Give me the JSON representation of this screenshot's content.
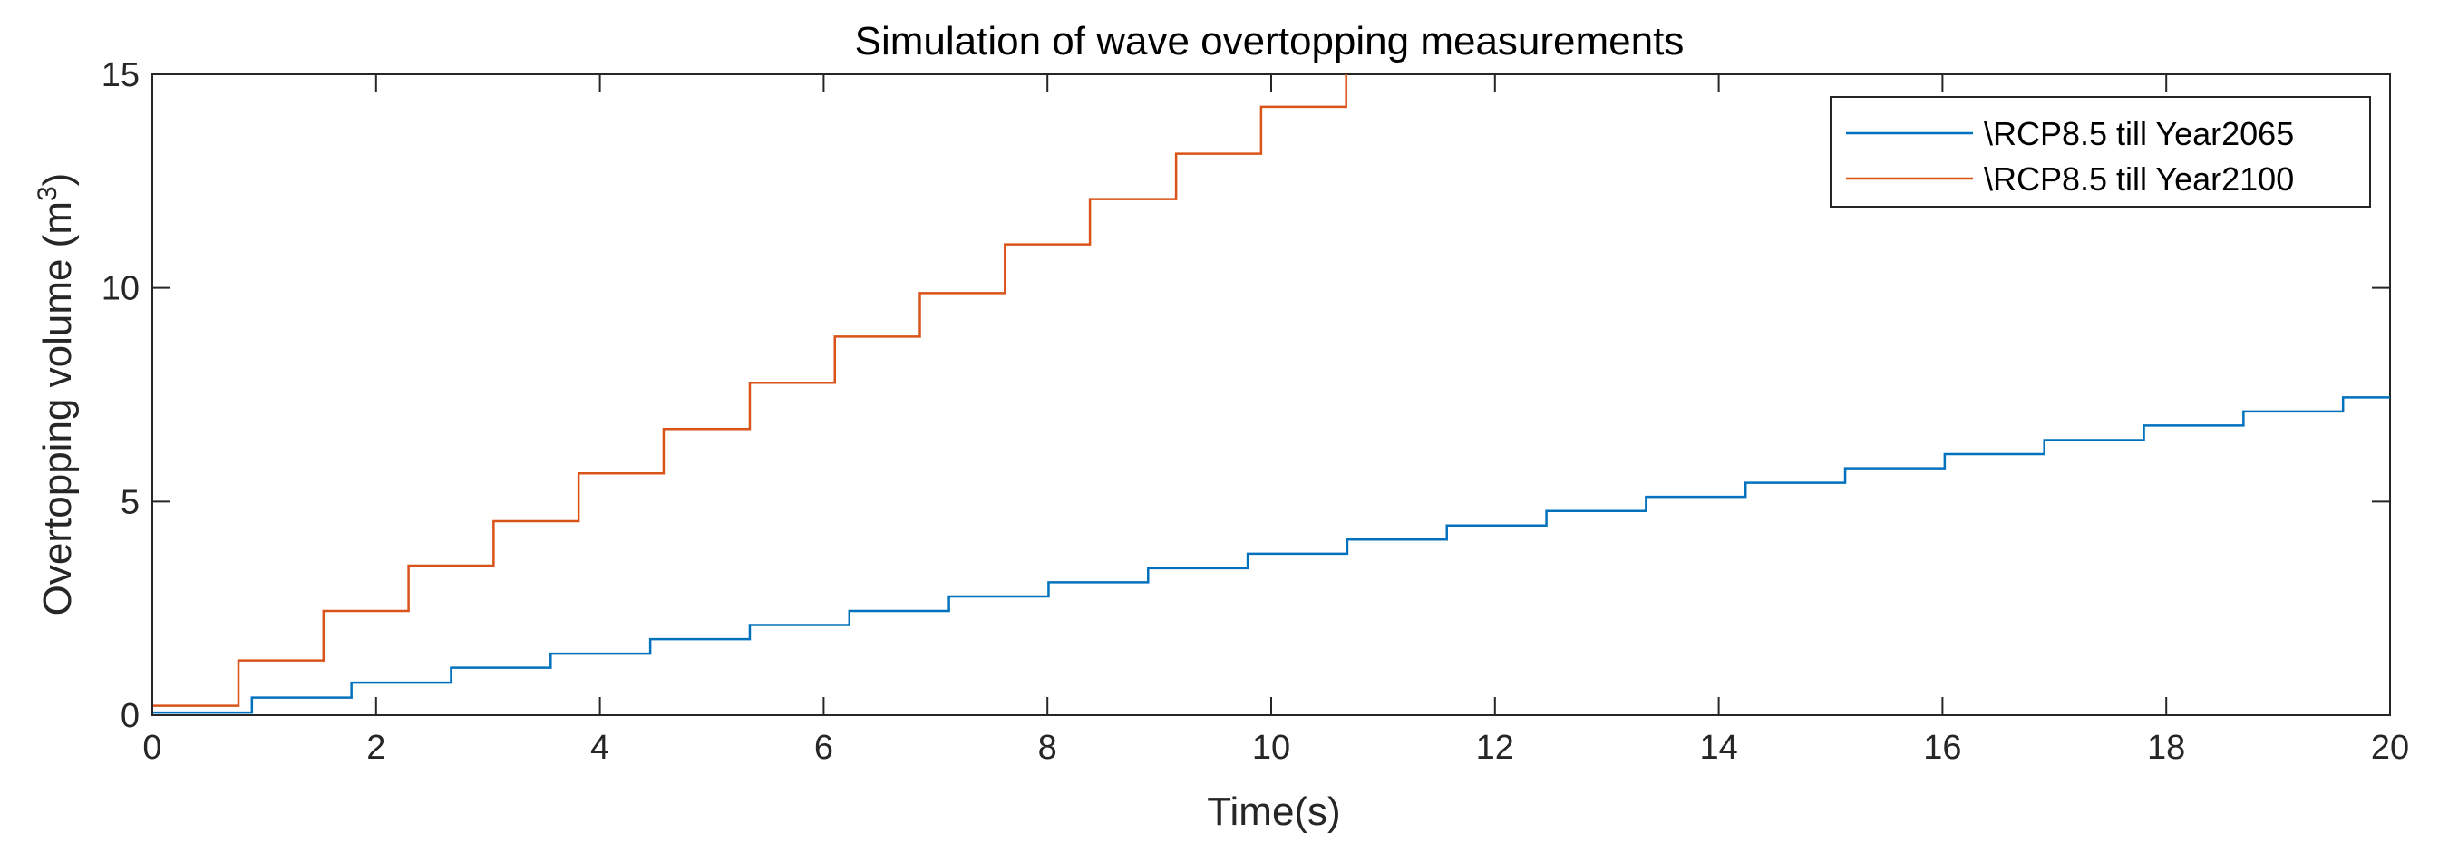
{
  "chart_data": {
    "type": "line",
    "step": true,
    "title": "Simulation of wave overtopping measurements",
    "xlabel": "Time(s)",
    "ylabel_main": "Overtopping volume (m",
    "ylabel_sup": "3",
    "ylabel_close": ")",
    "xlim": [
      0,
      20
    ],
    "ylim": [
      0,
      15
    ],
    "xticks": [
      0,
      2,
      4,
      6,
      8,
      10,
      12,
      14,
      16,
      18,
      20
    ],
    "yticks": [
      0,
      5,
      10,
      15
    ],
    "xtick_labels": [
      "0",
      "2",
      "4",
      "6",
      "8",
      "10",
      "12",
      "14",
      "16",
      "18",
      "20"
    ],
    "ytick_labels": [
      "0",
      "5",
      "10",
      "15"
    ],
    "grid": false,
    "legend_position": "top-right",
    "series": [
      {
        "name": "\\RCP8.5 till Year2065",
        "color": "#0072BD",
        "start_value": 0.06,
        "steps": [
          [
            0.89,
            0.41
          ],
          [
            1.78,
            0.76
          ],
          [
            2.67,
            1.11
          ],
          [
            3.56,
            1.44
          ],
          [
            4.45,
            1.78
          ],
          [
            5.34,
            2.11
          ],
          [
            6.23,
            2.44
          ],
          [
            7.12,
            2.78
          ],
          [
            8.01,
            3.11
          ],
          [
            8.9,
            3.44
          ],
          [
            9.79,
            3.78
          ],
          [
            10.68,
            4.11
          ],
          [
            11.57,
            4.44
          ],
          [
            12.46,
            4.78
          ],
          [
            13.35,
            5.11
          ],
          [
            14.24,
            5.44
          ],
          [
            15.13,
            5.78
          ],
          [
            16.02,
            6.11
          ],
          [
            16.91,
            6.44
          ],
          [
            17.8,
            6.78
          ],
          [
            18.69,
            7.11
          ],
          [
            19.58,
            7.44
          ]
        ]
      },
      {
        "name": "\\RCP8.5 till Year2100",
        "color": "#D95319",
        "start_value": 0.22,
        "steps": [
          [
            0.77,
            1.28
          ],
          [
            1.53,
            2.44
          ],
          [
            2.29,
            3.5
          ],
          [
            3.05,
            4.54
          ],
          [
            3.81,
            5.66
          ],
          [
            4.57,
            6.7
          ],
          [
            5.34,
            7.78
          ],
          [
            6.1,
            8.86
          ],
          [
            6.86,
            9.88
          ],
          [
            7.62,
            11.02
          ],
          [
            8.38,
            12.08
          ],
          [
            9.15,
            13.14
          ],
          [
            9.91,
            14.24
          ],
          [
            10.67,
            15.0
          ]
        ]
      }
    ]
  }
}
